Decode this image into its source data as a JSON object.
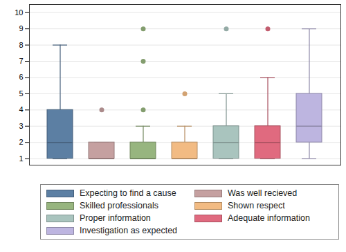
{
  "chart_data": {
    "type": "box",
    "series": [
      {
        "name": "Expecting to find a cause",
        "color": "#5c7fa3",
        "min": 1,
        "q1": 1,
        "median": 2,
        "q3": 4,
        "max": 8,
        "outliers": []
      },
      {
        "name": "Was well recieved",
        "color": "#c5a0a0",
        "min": 1,
        "q1": 1,
        "median": 1,
        "q3": 2,
        "max": 2,
        "outliers": [
          4
        ]
      },
      {
        "name": "Skilled professionals",
        "color": "#97b57f",
        "min": 1,
        "q1": 1,
        "median": 1,
        "q3": 2,
        "max": 3,
        "outliers": [
          4,
          7,
          9
        ]
      },
      {
        "name": "Shown respect",
        "color": "#f2bb83",
        "min": 1,
        "q1": 1,
        "median": 1,
        "q3": 2,
        "max": 3,
        "outliers": [
          5
        ]
      },
      {
        "name": "Proper information",
        "color": "#a9c4be",
        "min": 1,
        "q1": 1,
        "median": 2,
        "q3": 3,
        "max": 5,
        "outliers": [
          9
        ]
      },
      {
        "name": "Adequate information",
        "color": "#e06a7f",
        "min": 1,
        "q1": 1,
        "median": 2,
        "q3": 3,
        "max": 6,
        "outliers": [
          9
        ]
      },
      {
        "name": "Investigation as expected",
        "color": "#bdb5e0",
        "min": 1,
        "q1": 2,
        "median": 3,
        "q3": 5,
        "max": 9,
        "outliers": []
      }
    ],
    "ylim": [
      0.6,
      10.5
    ],
    "yticks": [
      1,
      2,
      3,
      4,
      5,
      6,
      7,
      8,
      9,
      10
    ],
    "grid": true,
    "tick_labels": "y",
    "legend": "bottom"
  }
}
